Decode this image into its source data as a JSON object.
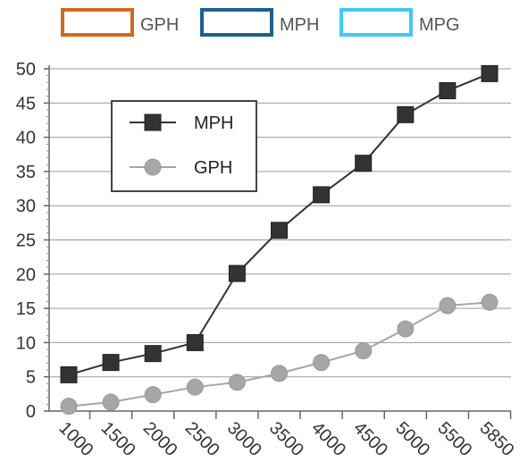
{
  "top_legend": [
    {
      "label": "GPH",
      "color": "#d2691e"
    },
    {
      "label": "MPH",
      "color": "#1e5f8e"
    },
    {
      "label": "MPG",
      "color": "#44c8f5"
    }
  ],
  "inner_legend": [
    {
      "label": "MPH",
      "marker": "square",
      "color": "#333333"
    },
    {
      "label": "GPH",
      "marker": "circle",
      "color": "#a6a6a6"
    }
  ],
  "chart_data": {
    "type": "line",
    "title": "",
    "xlabel": "",
    "ylabel": "",
    "categories": [
      "1000",
      "1500",
      "2000",
      "2500",
      "3000",
      "3500",
      "4000",
      "4500",
      "5000",
      "5500",
      "5850"
    ],
    "ylim": [
      0,
      50
    ],
    "yticks": [
      0,
      5,
      10,
      15,
      20,
      25,
      30,
      35,
      40,
      45,
      50
    ],
    "grid": true,
    "legend_position": "top-left inside plot",
    "series": [
      {
        "name": "MPH",
        "marker": "square",
        "color": "#333333",
        "values": [
          5.3,
          7.1,
          8.4,
          10.0,
          20.1,
          26.4,
          31.6,
          36.2,
          43.3,
          46.8,
          49.3
        ]
      },
      {
        "name": "GPH",
        "marker": "circle",
        "color": "#a6a6a6",
        "values": [
          0.7,
          1.3,
          2.4,
          3.5,
          4.2,
          5.5,
          7.1,
          8.8,
          12.0,
          15.4,
          15.9
        ]
      }
    ]
  }
}
